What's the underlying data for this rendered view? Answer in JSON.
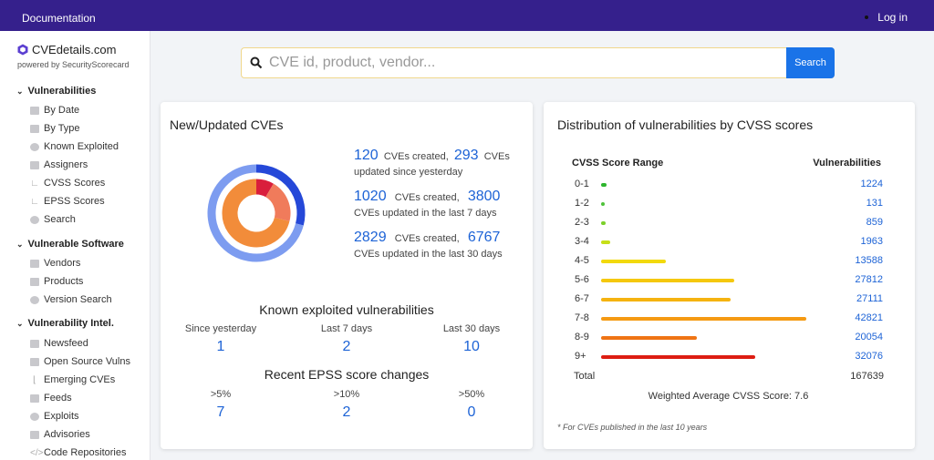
{
  "topbar": {
    "documentation": "Documentation",
    "login": "Log in"
  },
  "brand": {
    "name": "CVEdetails.com",
    "sub": "powered by SecurityScorecard",
    "accent": "#5b3fd1"
  },
  "sidebar": {
    "sections": [
      {
        "label": "Vulnerabilities",
        "items": [
          "By Date",
          "By Type",
          "Known Exploited",
          "Assigners",
          "CVSS Scores",
          "EPSS Scores",
          "Search"
        ]
      },
      {
        "label": "Vulnerable Software",
        "items": [
          "Vendors",
          "Products",
          "Version Search"
        ]
      },
      {
        "label": "Vulnerability Intel.",
        "items": [
          "Newsfeed",
          "Open Source Vulns",
          "Emerging CVEs",
          "Feeds",
          "Exploits",
          "Advisories",
          "Code Repositories"
        ]
      }
    ]
  },
  "search": {
    "placeholder": "CVE id, product, vendor...",
    "button": "Search"
  },
  "new_cves": {
    "title": "New/Updated CVEs",
    "rows": [
      {
        "created": "120",
        "mid": "CVEs created,",
        "updated": "293",
        "tail": "CVEs",
        "desc": "updated since yesterday"
      },
      {
        "created": "1020",
        "mid": "CVEs created,",
        "updated": "3800",
        "tail": "",
        "desc": "CVEs updated in the last 7 days"
      },
      {
        "created": "2829",
        "mid": "CVEs created,",
        "updated": "6767",
        "tail": "",
        "desc": "CVEs updated in the last 30 days"
      }
    ],
    "known_exploited": {
      "title": "Known exploited vulnerabilities",
      "cols": [
        {
          "label": "Since yesterday",
          "value": "1"
        },
        {
          "label": "Last 7 days",
          "value": "2"
        },
        {
          "label": "Last 30 days",
          "value": "10"
        }
      ]
    },
    "epss": {
      "title": "Recent EPSS score changes",
      "cols": [
        {
          "label": ">5%",
          "value": "7"
        },
        {
          "label": ">10%",
          "value": "2"
        },
        {
          "label": ">50%",
          "value": "0"
        }
      ]
    }
  },
  "distribution": {
    "title": "Distribution of vulnerabilities by CVSS scores",
    "col_range": "CVSS Score Range",
    "col_vulns": "Vulnerabilities",
    "rows": [
      {
        "range": "0-1",
        "count": "1224",
        "value": 1224,
        "color": "#2db52d"
      },
      {
        "range": "1-2",
        "count": "131",
        "value": 131,
        "color": "#4fc23a"
      },
      {
        "range": "2-3",
        "count": "859",
        "value": 859,
        "color": "#7cd02b"
      },
      {
        "range": "3-4",
        "count": "1963",
        "value": 1963,
        "color": "#c6df18"
      },
      {
        "range": "4-5",
        "count": "13588",
        "value": 13588,
        "color": "#f2d90c"
      },
      {
        "range": "5-6",
        "count": "27812",
        "value": 27812,
        "color": "#f5c80d"
      },
      {
        "range": "6-7",
        "count": "27111",
        "value": 27111,
        "color": "#f5b310"
      },
      {
        "range": "7-8",
        "count": "42821",
        "value": 42821,
        "color": "#f59a12"
      },
      {
        "range": "8-9",
        "count": "20054",
        "value": 20054,
        "color": "#ef7414"
      },
      {
        "range": "9+",
        "count": "32076",
        "value": 32076,
        "color": "#dd1d12"
      }
    ],
    "total_label": "Total",
    "total_value": "167639",
    "weighted_avg": "Weighted Average CVSS Score: 7.6",
    "footnote": "* For CVEs published in the last 10 years"
  },
  "donut": {
    "outer": [
      {
        "value": 120,
        "color": "#2548d8"
      },
      {
        "value": 293,
        "color": "#7d9cf0"
      }
    ],
    "inner": [
      {
        "value": 120,
        "color": "#d91e3c"
      },
      {
        "value": 293,
        "color": "#f07b5b"
      },
      {
        "value": 1020,
        "color": "#f28c3a"
      }
    ]
  }
}
